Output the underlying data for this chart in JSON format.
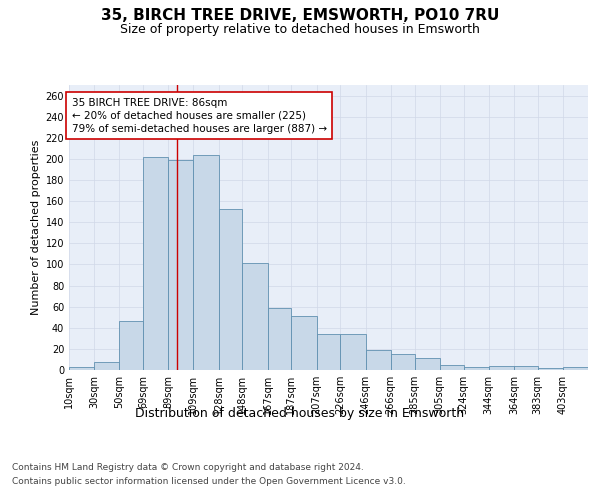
{
  "title": "35, BIRCH TREE DRIVE, EMSWORTH, PO10 7RU",
  "subtitle": "Size of property relative to detached houses in Emsworth",
  "xlabel": "Distribution of detached houses by size in Emsworth",
  "ylabel": "Number of detached properties",
  "categories": [
    "10sqm",
    "30sqm",
    "50sqm",
    "69sqm",
    "89sqm",
    "109sqm",
    "128sqm",
    "148sqm",
    "167sqm",
    "187sqm",
    "207sqm",
    "226sqm",
    "246sqm",
    "266sqm",
    "285sqm",
    "305sqm",
    "324sqm",
    "344sqm",
    "364sqm",
    "383sqm",
    "403sqm"
  ],
  "values": [
    3,
    8,
    46,
    202,
    199,
    204,
    153,
    101,
    59,
    51,
    34,
    34,
    19,
    15,
    11,
    5,
    3,
    4,
    4,
    2,
    3
  ],
  "bar_color": "#c8d8e8",
  "bar_edge_color": "#6090b0",
  "vline_x": 86,
  "vline_color": "#cc0000",
  "annotation_text": "35 BIRCH TREE DRIVE: 86sqm\n← 20% of detached houses are smaller (225)\n79% of semi-detached houses are larger (887) →",
  "annotation_box_color": "#ffffff",
  "annotation_box_edge": "#cc0000",
  "ylim": [
    0,
    270
  ],
  "yticks": [
    0,
    20,
    40,
    60,
    80,
    100,
    120,
    140,
    160,
    180,
    200,
    220,
    240,
    260
  ],
  "grid_color": "#d0d8e8",
  "footer_line1": "Contains HM Land Registry data © Crown copyright and database right 2024.",
  "footer_line2": "Contains public sector information licensed under the Open Government Licence v3.0.",
  "background_color": "#e8eef8",
  "fig_background": "#ffffff",
  "title_fontsize": 11,
  "subtitle_fontsize": 9,
  "xlabel_fontsize": 9,
  "ylabel_fontsize": 8,
  "tick_fontsize": 7,
  "footer_fontsize": 6.5,
  "annotation_fontsize": 7.5
}
